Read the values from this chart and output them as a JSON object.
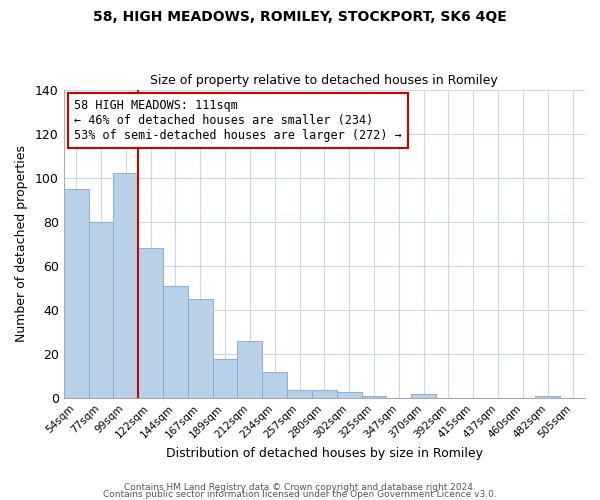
{
  "title": "58, HIGH MEADOWS, ROMILEY, STOCKPORT, SK6 4QE",
  "subtitle": "Size of property relative to detached houses in Romiley",
  "xlabel": "Distribution of detached houses by size in Romiley",
  "ylabel": "Number of detached properties",
  "bar_labels": [
    "54sqm",
    "77sqm",
    "99sqm",
    "122sqm",
    "144sqm",
    "167sqm",
    "189sqm",
    "212sqm",
    "234sqm",
    "257sqm",
    "280sqm",
    "302sqm",
    "325sqm",
    "347sqm",
    "370sqm",
    "392sqm",
    "415sqm",
    "437sqm",
    "460sqm",
    "482sqm",
    "505sqm"
  ],
  "bar_values": [
    95,
    80,
    102,
    68,
    51,
    45,
    18,
    26,
    12,
    4,
    4,
    3,
    1,
    0,
    2,
    0,
    0,
    0,
    0,
    1,
    0
  ],
  "bar_color": "#b8d0e8",
  "bar_edge_color": "#7aaacf",
  "highlight_color": "#cc0000",
  "red_line_after_index": 2,
  "annotation_title": "58 HIGH MEADOWS: 111sqm",
  "annotation_line1": "← 46% of detached houses are smaller (234)",
  "annotation_line2": "53% of semi-detached houses are larger (272) →",
  "annotation_box_color": "#ffffff",
  "annotation_box_edge": "#cc0000",
  "ylim": [
    0,
    140
  ],
  "yticks": [
    0,
    20,
    40,
    60,
    80,
    100,
    120,
    140
  ],
  "footer1": "Contains HM Land Registry data © Crown copyright and database right 2024.",
  "footer2": "Contains public sector information licensed under the Open Government Licence v3.0.",
  "background_color": "#ffffff",
  "grid_color": "#c8d8e8",
  "title_fontsize": 10,
  "subtitle_fontsize": 9
}
